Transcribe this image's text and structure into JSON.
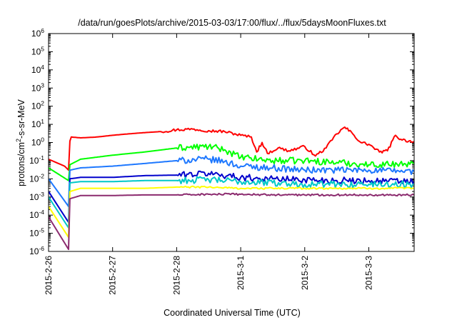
{
  "chart_data": {
    "type": "line",
    "title": "/data/run/goesPlots/archive/2015-03-03/17:00/flux/../flux/5daysMoonFluxes.txt",
    "xlabel": "Coordinated Universal Time (UTC)",
    "ylabel": "protons/cm²-s-sr-MeV",
    "ylabel_parts": {
      "before": "protons/cm",
      "sup": "2",
      "after": "-s-sr-MeV"
    },
    "x_range": [
      "2015-02-26T00:00",
      "2015-03-03T17:00"
    ],
    "x_ticks": [
      {
        "date": "2015-02-26",
        "label": "2015-2-26"
      },
      {
        "date": "2015-02-27",
        "label": "2015-2-27"
      },
      {
        "date": "2015-02-28",
        "label": "2015-2-28"
      },
      {
        "date": "2015-03-01",
        "label": "2015-3-1"
      },
      {
        "date": "2015-03-02",
        "label": "2015-3-2"
      },
      {
        "date": "2015-03-03",
        "label": "2015-3-3"
      }
    ],
    "y_scale": "log",
    "ylim": [
      1e-06,
      1000000.0
    ],
    "y_ticks": [
      {
        "base": "10",
        "exp": "-6"
      },
      {
        "base": "10",
        "exp": "-5"
      },
      {
        "base": "10",
        "exp": "-4"
      },
      {
        "base": "10",
        "exp": "-3"
      },
      {
        "base": "10",
        "exp": "-2"
      },
      {
        "base": "10",
        "exp": "-1"
      },
      {
        "base": "10",
        "exp": "0"
      },
      {
        "base": "10",
        "exp": "1"
      },
      {
        "base": "10",
        "exp": "2"
      },
      {
        "base": "10",
        "exp": "3"
      },
      {
        "base": "10",
        "exp": "4"
      },
      {
        "base": "10",
        "exp": "5"
      },
      {
        "base": "10",
        "exp": "6"
      }
    ],
    "grid": false,
    "legend": "none",
    "series": [
      {
        "color": "#ff0000",
        "points": [
          [
            "2015-02-26T00:00",
            0.12
          ],
          [
            "2015-02-26T06:00",
            0.05
          ],
          [
            "2015-02-26T07:30",
            0.03
          ],
          [
            "2015-02-26T08:00",
            1.2
          ],
          [
            "2015-02-26T08:30",
            2.0
          ],
          [
            "2015-02-26T12:00",
            1.8
          ],
          [
            "2015-02-26T18:00",
            2.0
          ],
          [
            "2015-02-27T00:00",
            2.5
          ],
          [
            "2015-02-27T06:00",
            3.0
          ],
          [
            "2015-02-27T12:00",
            3.5
          ],
          [
            "2015-02-27T18:00",
            4.0
          ],
          [
            "2015-02-28T00:00",
            5.0
          ],
          [
            "2015-02-28T06:00",
            5.5
          ],
          [
            "2015-02-28T12:00",
            4.5
          ],
          [
            "2015-02-28T18:00",
            4.0
          ],
          [
            "2015-03-01T00:00",
            2.5
          ],
          [
            "2015-03-01T04:00",
            2.0
          ],
          [
            "2015-03-01T06:00",
            0.3
          ],
          [
            "2015-03-01T08:00",
            1.0
          ],
          [
            "2015-03-01T10:00",
            0.25
          ],
          [
            "2015-03-01T14:00",
            0.5
          ],
          [
            "2015-03-01T18:00",
            0.35
          ],
          [
            "2015-03-02T00:00",
            0.6
          ],
          [
            "2015-03-02T04:00",
            0.18
          ],
          [
            "2015-03-02T08:00",
            0.5
          ],
          [
            "2015-03-02T12:00",
            3.0
          ],
          [
            "2015-03-02T15:00",
            7.0
          ],
          [
            "2015-03-02T18:00",
            3.0
          ],
          [
            "2015-03-02T21:00",
            1.0
          ],
          [
            "2015-03-03T00:00",
            0.8
          ],
          [
            "2015-03-03T04:00",
            0.3
          ],
          [
            "2015-03-03T07:00",
            0.35
          ],
          [
            "2015-03-03T10:00",
            2.5
          ],
          [
            "2015-03-03T12:00",
            1.5
          ],
          [
            "2015-03-03T15:00",
            1.2
          ],
          [
            "2015-03-03T17:00",
            1.1
          ]
        ]
      },
      {
        "color": "#00ff00",
        "points": [
          [
            "2015-02-26T00:00",
            0.04
          ],
          [
            "2015-02-26T07:30",
            0.008
          ],
          [
            "2015-02-26T08:00",
            0.06
          ],
          [
            "2015-02-26T12:00",
            0.12
          ],
          [
            "2015-02-27T00:00",
            0.2
          ],
          [
            "2015-02-27T12:00",
            0.3
          ],
          [
            "2015-02-28T00:00",
            0.5
          ],
          [
            "2015-02-28T12:00",
            0.6
          ],
          [
            "2015-02-28T18:00",
            0.4
          ],
          [
            "2015-03-01T00:00",
            0.15
          ],
          [
            "2015-03-01T12:00",
            0.1
          ],
          [
            "2015-03-02T00:00",
            0.1
          ],
          [
            "2015-03-02T12:00",
            0.08
          ],
          [
            "2015-03-03T00:00",
            0.06
          ],
          [
            "2015-03-03T17:00",
            0.07
          ]
        ]
      },
      {
        "color": "#1e78ff",
        "points": [
          [
            "2015-02-26T00:00",
            0.01
          ],
          [
            "2015-02-26T07:30",
            0.0003
          ],
          [
            "2015-02-26T08:00",
            0.03
          ],
          [
            "2015-02-26T12:00",
            0.04
          ],
          [
            "2015-02-27T00:00",
            0.05
          ],
          [
            "2015-02-27T12:00",
            0.07
          ],
          [
            "2015-02-28T00:00",
            0.1
          ],
          [
            "2015-02-28T12:00",
            0.12
          ],
          [
            "2015-02-28T18:00",
            0.09
          ],
          [
            "2015-03-01T00:00",
            0.05
          ],
          [
            "2015-03-01T12:00",
            0.04
          ],
          [
            "2015-03-02T00:00",
            0.03
          ],
          [
            "2015-03-02T12:00",
            0.03
          ],
          [
            "2015-03-03T00:00",
            0.03
          ],
          [
            "2015-03-03T17:00",
            0.025
          ]
        ]
      },
      {
        "color": "#0000cc",
        "points": [
          [
            "2015-02-26T00:00",
            0.002
          ],
          [
            "2015-02-26T07:30",
            4e-05
          ],
          [
            "2015-02-26T08:00",
            0.01
          ],
          [
            "2015-02-26T12:00",
            0.012
          ],
          [
            "2015-02-27T00:00",
            0.012
          ],
          [
            "2015-02-27T12:00",
            0.015
          ],
          [
            "2015-02-28T00:00",
            0.016
          ],
          [
            "2015-02-28T12:00",
            0.02
          ],
          [
            "2015-03-01T00:00",
            0.012
          ],
          [
            "2015-03-01T12:00",
            0.01
          ],
          [
            "2015-03-02T00:00",
            0.009
          ],
          [
            "2015-03-02T12:00",
            0.008
          ],
          [
            "2015-03-03T00:00",
            0.008
          ],
          [
            "2015-03-03T17:00",
            0.007
          ]
        ]
      },
      {
        "color": "#00c8c8",
        "points": [
          [
            "2015-02-26T00:00",
            0.001
          ],
          [
            "2015-02-26T07:30",
            2e-05
          ],
          [
            "2015-02-26T08:00",
            0.006
          ],
          [
            "2015-02-26T12:00",
            0.007
          ],
          [
            "2015-02-27T00:00",
            0.007
          ],
          [
            "2015-02-27T12:00",
            0.008
          ],
          [
            "2015-02-28T00:00",
            0.008
          ],
          [
            "2015-02-28T12:00",
            0.009
          ],
          [
            "2015-03-01T00:00",
            0.007
          ],
          [
            "2015-03-01T12:00",
            0.006
          ],
          [
            "2015-03-02T00:00",
            0.005
          ],
          [
            "2015-03-02T12:00",
            0.005
          ],
          [
            "2015-03-03T00:00",
            0.005
          ],
          [
            "2015-03-03T17:00",
            0.005
          ]
        ]
      },
      {
        "color": "#ffff00",
        "points": [
          [
            "2015-02-26T00:00",
            0.0003
          ],
          [
            "2015-02-26T07:30",
            6e-06
          ],
          [
            "2015-02-26T08:00",
            0.002
          ],
          [
            "2015-02-26T12:00",
            0.003
          ],
          [
            "2015-02-27T00:00",
            0.003
          ],
          [
            "2015-02-27T12:00",
            0.003
          ],
          [
            "2015-02-28T00:00",
            0.0035
          ],
          [
            "2015-02-28T12:00",
            0.0035
          ],
          [
            "2015-03-01T00:00",
            0.003
          ],
          [
            "2015-03-01T12:00",
            0.003
          ],
          [
            "2015-03-02T00:00",
            0.003
          ],
          [
            "2015-03-02T12:00",
            0.003
          ],
          [
            "2015-03-03T00:00",
            0.003
          ],
          [
            "2015-03-03T17:00",
            0.003
          ]
        ]
      },
      {
        "color": "#8b2a6e",
        "points": [
          [
            "2015-02-26T00:00",
            8e-05
          ],
          [
            "2015-02-26T07:30",
            1.3e-06
          ],
          [
            "2015-02-26T08:00",
            0.0008
          ],
          [
            "2015-02-26T12:00",
            0.0012
          ],
          [
            "2015-02-27T00:00",
            0.0012
          ],
          [
            "2015-02-27T12:00",
            0.0013
          ],
          [
            "2015-02-28T00:00",
            0.0013
          ],
          [
            "2015-02-28T12:00",
            0.0014
          ],
          [
            "2015-03-01T00:00",
            0.0014
          ],
          [
            "2015-03-01T12:00",
            0.0013
          ],
          [
            "2015-03-02T00:00",
            0.0013
          ],
          [
            "2015-03-02T12:00",
            0.0013
          ],
          [
            "2015-03-03T00:00",
            0.0013
          ],
          [
            "2015-03-03T17:00",
            0.0013
          ]
        ]
      }
    ]
  }
}
